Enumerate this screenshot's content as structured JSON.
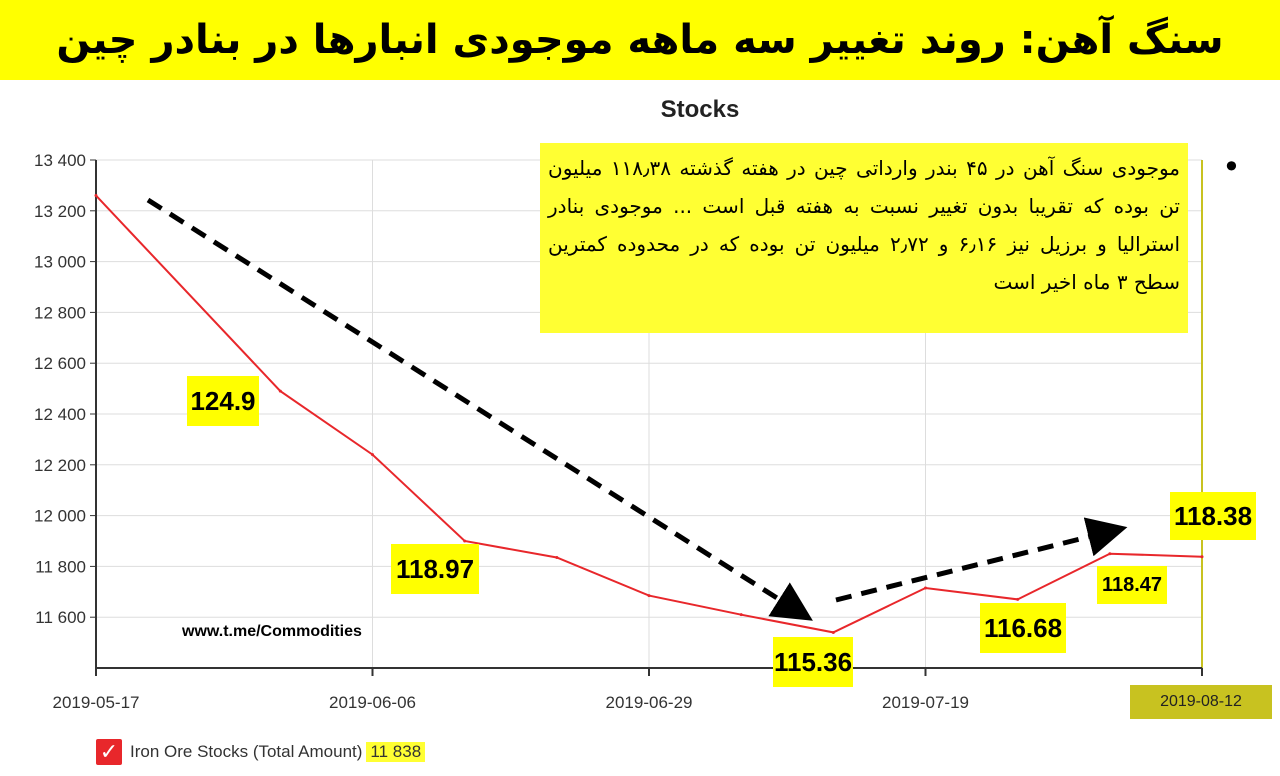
{
  "banner": {
    "title": "سنگ آهن: روند تغییر سه ماهه موجودی انبارها در بنادر چین"
  },
  "note": {
    "text": "موجودی سنگ آهن در ۴۵ بندر وارداتی چین در هفته گذشته ۱۱۸٫۳۸ میلیون تن بوده که تقریبا بدون تغییر نسبت به هفته قبل است ... موجودی بنادر استرالیا و برزیل نیز ۶٫۱۶ و ۲٫۷۲ میلیون تن بوده که در محدوده کمترین سطح ۳ ماه اخیر است",
    "bullet": "•"
  },
  "watermark": "www.t.me/Commodities",
  "chart_data": {
    "type": "line",
    "title": "Stocks",
    "xlabel": "",
    "ylabel": "",
    "ylim": [
      11400,
      13400
    ],
    "y_ticks": [
      11600,
      11800,
      12000,
      12200,
      12400,
      12600,
      12800,
      13000,
      13200,
      13400
    ],
    "y_tick_labels": [
      "11 600",
      "11 800",
      "12 000",
      "12 200",
      "12 400",
      "12 600",
      "12 800",
      "13 000",
      "13 200",
      "13 400"
    ],
    "x_tick_labels": [
      "2019-05-17",
      "2019-06-06",
      "2019-06-29",
      "2019-07-19",
      "2019-08-12"
    ],
    "x_tick_positions": [
      0,
      3,
      6,
      9,
      12
    ],
    "grid": true,
    "series": [
      {
        "name": "Iron Ore Stocks (Total Amount)",
        "color": "#e8272b",
        "x": [
          0,
          2,
          3,
          4,
          5,
          6,
          7,
          8,
          9,
          10,
          11,
          12
        ],
        "values": [
          13260,
          12490,
          12240,
          11900,
          11835,
          11685,
          11610,
          11540,
          11715,
          11670,
          11850,
          11838
        ]
      }
    ],
    "legend": {
      "label": "Iron Ore Stocks (Total Amount)",
      "value": "11 838",
      "position": "bottom-left"
    },
    "cursor_label": "2019-08-12",
    "annotations": [
      {
        "id": "a1",
        "text": "124.9"
      },
      {
        "id": "a2",
        "text": "118.97"
      },
      {
        "id": "a3",
        "text": "115.36"
      },
      {
        "id": "a4",
        "text": "116.68"
      },
      {
        "id": "a5",
        "text": "118.47"
      },
      {
        "id": "a6",
        "text": "118.38"
      }
    ]
  }
}
